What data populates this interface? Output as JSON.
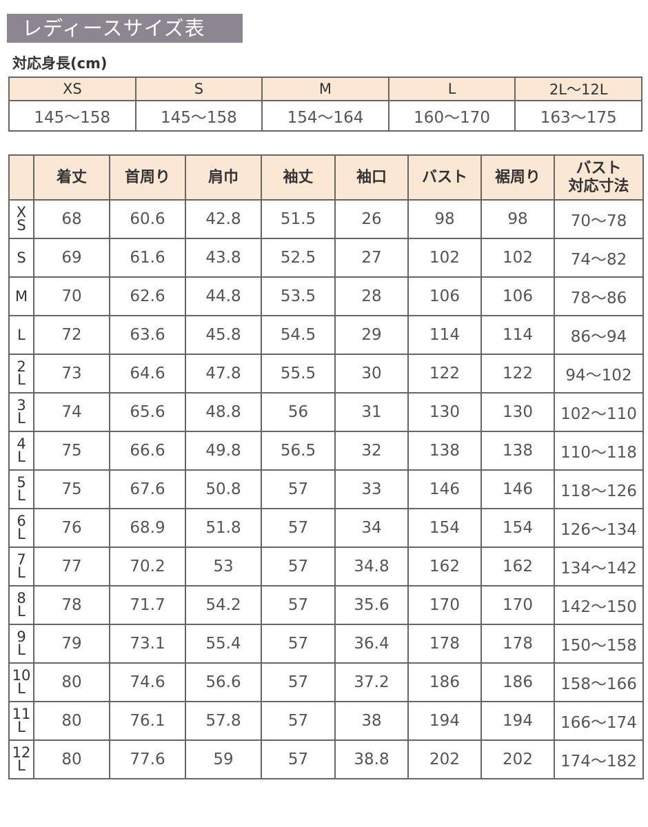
{
  "title": "レディースサイズ表",
  "subtitle": "対応身長(cm)",
  "colors": {
    "title_bg": "#8b8690",
    "header_bg": "#fbe8d4",
    "border": "#666666"
  },
  "height_table": {
    "sizes": [
      "XS",
      "S",
      "M",
      "L",
      "2L〜12L"
    ],
    "heights": [
      "145〜158",
      "145〜158",
      "154〜164",
      "160〜170",
      "163〜175"
    ]
  },
  "size_table": {
    "headers": [
      "",
      "着丈",
      "首周り",
      "肩巾",
      "袖丈",
      "袖口",
      "バスト",
      "裾周り",
      "バスト\n対応寸法"
    ],
    "rows": [
      {
        "size": "X\nS",
        "values": [
          "68",
          "60.6",
          "42.8",
          "51.5",
          "26",
          "98",
          "98",
          "70〜78"
        ]
      },
      {
        "size": "S",
        "values": [
          "69",
          "61.6",
          "43.8",
          "52.5",
          "27",
          "102",
          "102",
          "74〜82"
        ]
      },
      {
        "size": "M",
        "values": [
          "70",
          "62.6",
          "44.8",
          "53.5",
          "28",
          "106",
          "106",
          "78〜86"
        ]
      },
      {
        "size": "L",
        "values": [
          "72",
          "63.6",
          "45.8",
          "54.5",
          "29",
          "114",
          "114",
          "86〜94"
        ]
      },
      {
        "size": "2\nL",
        "values": [
          "73",
          "64.6",
          "47.8",
          "55.5",
          "30",
          "122",
          "122",
          "94〜102"
        ]
      },
      {
        "size": "3\nL",
        "values": [
          "74",
          "65.6",
          "48.8",
          "56",
          "31",
          "130",
          "130",
          "102〜110"
        ]
      },
      {
        "size": "4\nL",
        "values": [
          "75",
          "66.6",
          "49.8",
          "56.5",
          "32",
          "138",
          "138",
          "110〜118"
        ]
      },
      {
        "size": "5\nL",
        "values": [
          "75",
          "67.6",
          "50.8",
          "57",
          "33",
          "146",
          "146",
          "118〜126"
        ]
      },
      {
        "size": "6\nL",
        "values": [
          "76",
          "68.9",
          "51.8",
          "57",
          "34",
          "154",
          "154",
          "126〜134"
        ]
      },
      {
        "size": "7\nL",
        "values": [
          "77",
          "70.2",
          "53",
          "57",
          "34.8",
          "162",
          "162",
          "134〜142"
        ]
      },
      {
        "size": "8\nL",
        "values": [
          "78",
          "71.7",
          "54.2",
          "57",
          "35.6",
          "170",
          "170",
          "142〜150"
        ]
      },
      {
        "size": "9\nL",
        "values": [
          "79",
          "73.1",
          "55.4",
          "57",
          "36.4",
          "178",
          "178",
          "150〜158"
        ]
      },
      {
        "size": "10\nL",
        "values": [
          "80",
          "74.6",
          "56.6",
          "57",
          "37.2",
          "186",
          "186",
          "158〜166"
        ]
      },
      {
        "size": "11\nL",
        "values": [
          "80",
          "76.1",
          "57.8",
          "57",
          "38",
          "194",
          "194",
          "166〜174"
        ]
      },
      {
        "size": "12\nL",
        "values": [
          "80",
          "77.6",
          "59",
          "57",
          "38.8",
          "202",
          "202",
          "174〜182"
        ]
      }
    ]
  }
}
